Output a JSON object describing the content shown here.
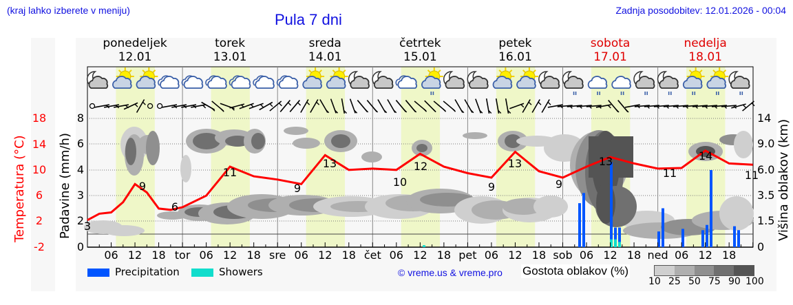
{
  "header": {
    "region_hint": "(kraj lahko izberete v meniju)",
    "title": "Pula 7 dni",
    "last_update": "Zadnja posodobitev: 12.01.2026 - 00:04"
  },
  "days": [
    {
      "name": "ponedeljek",
      "date": "12.01",
      "weekend": false,
      "short": ""
    },
    {
      "name": "torek",
      "date": "13.01",
      "weekend": false,
      "short": "tor"
    },
    {
      "name": "sreda",
      "date": "14.01",
      "weekend": false,
      "short": "sre"
    },
    {
      "name": "četrtek",
      "date": "15.01",
      "weekend": false,
      "short": "čet"
    },
    {
      "name": "petek",
      "date": "16.01",
      "weekend": false,
      "short": "pet"
    },
    {
      "name": "sobota",
      "date": "17.01",
      "weekend": true,
      "short": "sob"
    },
    {
      "name": "nedelja",
      "date": "18.01",
      "weekend": true,
      "short": "ned"
    }
  ],
  "axes": {
    "left_temp_label": "Temperatura (°C)",
    "left_temp_ticks": [
      "18",
      "14",
      "10",
      "6",
      "2",
      "-2"
    ],
    "left_precip_label": "Padavine (mm/h)",
    "left_precip_ticks": [
      "8",
      "6",
      "4",
      "3",
      "2",
      "0"
    ],
    "right_label": "Višina oblakov (km)",
    "right_ticks": [
      "14",
      "9.0",
      "6.0",
      "3.5",
      "1.5",
      "0"
    ],
    "hour_ticks": [
      "06",
      "12",
      "18"
    ]
  },
  "weather_icons": [
    "moon-cloud",
    "sun-cloud",
    "sun-cloud",
    "cloud",
    "cloud",
    "cloud",
    "cloud",
    "cloud",
    "cloud",
    "sun-cloud",
    "sun-cloud",
    "moon-cloud",
    "moon-cloud",
    "cloud",
    "sun-cloud-rain",
    "moon-cloud",
    "moon-cloud",
    "sun-cloud",
    "sun-cloud",
    "moon-cloud",
    "moon-cloud-rain",
    "cloud-rain",
    "cloud-rain",
    "moon-cloud-rain",
    "moon-cloud-rain",
    "sun-cloud-rain",
    "sun-cloud-rain",
    "moon-cloud-rain"
  ],
  "legend": {
    "precipitation": "Precipitation",
    "showers": "Showers",
    "copyright": "© vreme.us & vreme.pro",
    "cloud_density_label": "Gostota oblakov (%)",
    "cloud_density_ticks": [
      "10",
      "25",
      "50",
      "75",
      "90",
      "100"
    ]
  },
  "colors": {
    "temperature": "#ff0000",
    "precipitation": "#0055ff",
    "showers": "#11ddcc",
    "daylight": "#eff7c8",
    "weekend": "#e00000",
    "link": "#1010e0"
  },
  "chart_data": {
    "type": "line",
    "title": "Pula 7 dni",
    "xlabel": "",
    "ylabel": "Temperatura (°C)",
    "ylim": [
      -2,
      20
    ],
    "x": [
      "Mon 00",
      "Mon 06",
      "Mon 12",
      "Mon 18",
      "Tue 00",
      "Tue 06",
      "Tue 12",
      "Tue 18",
      "Wed 00",
      "Wed 06",
      "Wed 12",
      "Wed 18",
      "Thu 00",
      "Thu 06",
      "Thu 12",
      "Thu 18",
      "Fri 00",
      "Fri 06",
      "Fri 12",
      "Fri 18",
      "Sat 00",
      "Sat 06",
      "Sat 12",
      "Sat 18",
      "Sun 00",
      "Sun 06",
      "Sun 12",
      "Sun 18"
    ],
    "series": [
      {
        "name": "Temperatura (°C)",
        "values": [
          3,
          4.5,
          9,
          6,
          6,
          7.5,
          11,
          10,
          10,
          9.5,
          13,
          11,
          11.2,
          10,
          12.5,
          10.5,
          10,
          9,
          12.5,
          10,
          9,
          11.5,
          13.5,
          12,
          11.5,
          11.7,
          14.5,
          11.5
        ]
      },
      {
        "name": "Precipitation (mm/h)",
        "values": [
          0,
          0,
          0,
          0,
          0,
          0,
          0,
          0,
          0,
          0,
          0,
          0,
          0,
          0,
          0,
          0,
          0,
          0,
          0,
          0,
          0,
          3.2,
          4.9,
          0,
          0,
          1.5,
          4,
          1.3
        ]
      },
      {
        "name": "Showers (mm/h)",
        "values": [
          0,
          0,
          0,
          0,
          0,
          0,
          0,
          0,
          0,
          0,
          0,
          0,
          0,
          0,
          0.15,
          0,
          0,
          0,
          0,
          0,
          0,
          0,
          0.6,
          0,
          0,
          0,
          0,
          0
        ]
      }
    ],
    "temperature_labels": [
      {
        "day": "ponedeljek",
        "min": 3,
        "max": 9
      },
      {
        "day": "torek",
        "min": 6,
        "max": 11
      },
      {
        "day": "sreda",
        "min": 9,
        "max": 13
      },
      {
        "day": "četrtek",
        "min": 10,
        "max": 12
      },
      {
        "day": "petek",
        "min": 9,
        "max": 13
      },
      {
        "day": "sobota",
        "min": 9,
        "max": 13
      },
      {
        "day": "nedelja",
        "min": 11,
        "max": 14
      },
      {
        "day": "end",
        "value": 11
      }
    ],
    "right_axis": {
      "label": "Višina oblakov (km)",
      "ticks": [
        0,
        1.5,
        3.5,
        6.0,
        9.0,
        14
      ]
    },
    "grid": true,
    "legend_position": "bottom"
  }
}
